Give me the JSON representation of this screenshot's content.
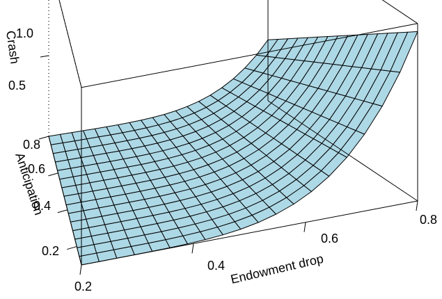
{
  "chart_data": {
    "type": "surface",
    "xlabel": "Endowment drop",
    "ylabel": "Anticipation",
    "zlabel": "Crash",
    "xlim": [
      0.2,
      0.8
    ],
    "ylim": [
      0.1,
      0.8
    ],
    "zlim": [
      0,
      1.1
    ],
    "x_ticks": [
      "0.2",
      "0.4",
      "0.6",
      "0.8"
    ],
    "y_ticks": [
      "0.2",
      "0.4",
      "0.6",
      "0.8"
    ],
    "z_ticks": [
      "0.5",
      "1.0"
    ],
    "grid_x": 19,
    "grid_y": 15,
    "surface_color": "#add8e6",
    "description_values": {
      "crash_at_max_drop_min_anticipation": 1.05,
      "crash_at_max_drop_max_anticipation": 0.38,
      "crash_flat_region": 0.0
    }
  }
}
